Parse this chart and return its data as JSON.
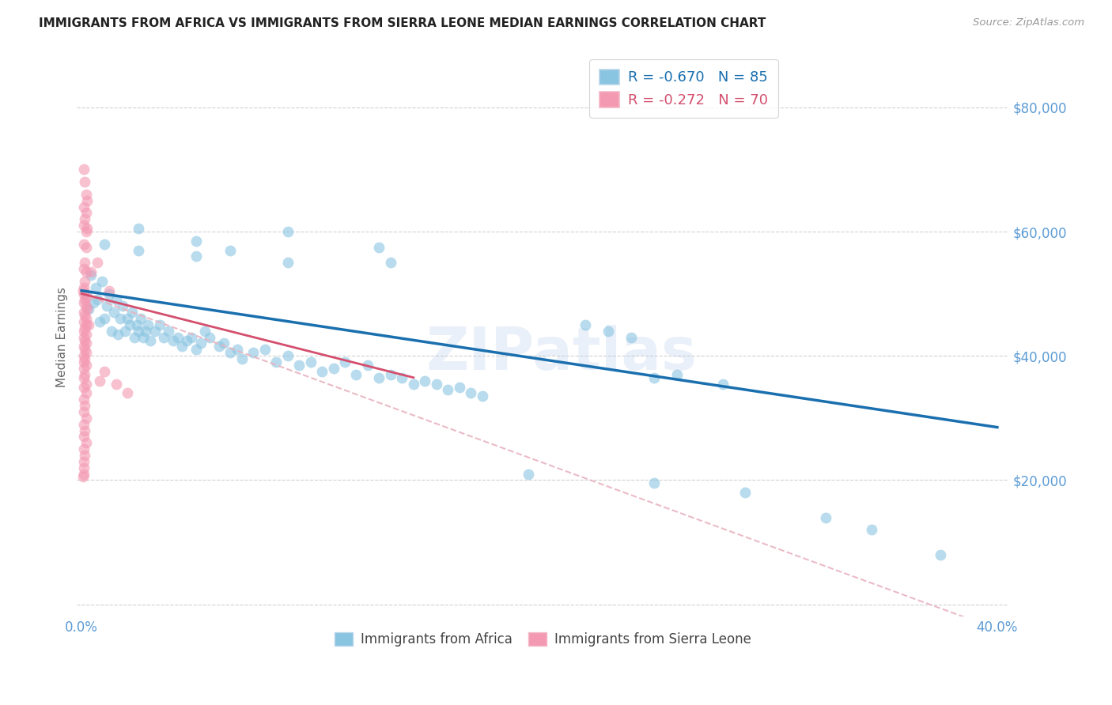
{
  "title": "IMMIGRANTS FROM AFRICA VS IMMIGRANTS FROM SIERRA LEONE MEDIAN EARNINGS CORRELATION CHART",
  "source": "Source: ZipAtlas.com",
  "ylabel": "Median Earnings",
  "xlim": [
    -0.002,
    0.405
  ],
  "ylim": [
    -2000,
    88000
  ],
  "yticks": [
    0,
    20000,
    40000,
    60000,
    80000
  ],
  "ytick_labels": [
    "",
    "$20,000",
    "$40,000",
    "$60,000",
    "$80,000"
  ],
  "xticks": [
    0.0,
    0.4
  ],
  "xtick_labels": [
    "0.0%",
    "40.0%"
  ],
  "blue_scatter_color": "#89c4e1",
  "pink_scatter_color": "#f499b2",
  "blue_line_color": "#1a6faf",
  "pink_solid_color": "#d44f6e",
  "pink_dashed_color": "#e8b4c0",
  "watermark": "ZIPatlas",
  "blue_trendline": [
    [
      0.0,
      50500
    ],
    [
      0.4,
      28500
    ]
  ],
  "pink_solid_line": [
    [
      0.0,
      50000
    ],
    [
      0.145,
      36500
    ]
  ],
  "pink_dashed_line": [
    [
      0.0,
      50000
    ],
    [
      0.4,
      -4000
    ]
  ],
  "africa_scatter": [
    [
      0.002,
      50000
    ],
    [
      0.003,
      47500
    ],
    [
      0.004,
      53000
    ],
    [
      0.005,
      48500
    ],
    [
      0.006,
      51000
    ],
    [
      0.007,
      49000
    ],
    [
      0.008,
      45500
    ],
    [
      0.009,
      52000
    ],
    [
      0.01,
      46000
    ],
    [
      0.011,
      48000
    ],
    [
      0.012,
      50000
    ],
    [
      0.013,
      44000
    ],
    [
      0.014,
      47000
    ],
    [
      0.015,
      49000
    ],
    [
      0.016,
      43500
    ],
    [
      0.017,
      46000
    ],
    [
      0.018,
      48000
    ],
    [
      0.019,
      44000
    ],
    [
      0.02,
      46000
    ],
    [
      0.021,
      45000
    ],
    [
      0.022,
      47000
    ],
    [
      0.023,
      43000
    ],
    [
      0.024,
      45000
    ],
    [
      0.025,
      44000
    ],
    [
      0.026,
      46000
    ],
    [
      0.027,
      43000
    ],
    [
      0.028,
      44000
    ],
    [
      0.029,
      45000
    ],
    [
      0.03,
      42500
    ],
    [
      0.032,
      44000
    ],
    [
      0.034,
      45000
    ],
    [
      0.036,
      43000
    ],
    [
      0.038,
      44000
    ],
    [
      0.04,
      42500
    ],
    [
      0.042,
      43000
    ],
    [
      0.044,
      41500
    ],
    [
      0.046,
      42500
    ],
    [
      0.048,
      43000
    ],
    [
      0.05,
      41000
    ],
    [
      0.052,
      42000
    ],
    [
      0.054,
      44000
    ],
    [
      0.056,
      43000
    ],
    [
      0.06,
      41500
    ],
    [
      0.062,
      42000
    ],
    [
      0.065,
      40500
    ],
    [
      0.068,
      41000
    ],
    [
      0.07,
      39500
    ],
    [
      0.075,
      40500
    ],
    [
      0.08,
      41000
    ],
    [
      0.085,
      39000
    ],
    [
      0.09,
      40000
    ],
    [
      0.095,
      38500
    ],
    [
      0.1,
      39000
    ],
    [
      0.105,
      37500
    ],
    [
      0.11,
      38000
    ],
    [
      0.115,
      39000
    ],
    [
      0.12,
      37000
    ],
    [
      0.125,
      38500
    ],
    [
      0.13,
      36500
    ],
    [
      0.135,
      37000
    ],
    [
      0.14,
      36500
    ],
    [
      0.145,
      35500
    ],
    [
      0.15,
      36000
    ],
    [
      0.155,
      35500
    ],
    [
      0.16,
      34500
    ],
    [
      0.165,
      35000
    ],
    [
      0.17,
      34000
    ],
    [
      0.175,
      33500
    ],
    [
      0.01,
      58000
    ],
    [
      0.025,
      57000
    ],
    [
      0.05,
      56000
    ],
    [
      0.09,
      55000
    ],
    [
      0.135,
      55000
    ],
    [
      0.09,
      60000
    ],
    [
      0.025,
      60500
    ],
    [
      0.05,
      58500
    ],
    [
      0.065,
      57000
    ],
    [
      0.13,
      57500
    ],
    [
      0.22,
      45000
    ],
    [
      0.23,
      44000
    ],
    [
      0.24,
      43000
    ],
    [
      0.25,
      36500
    ],
    [
      0.26,
      37000
    ],
    [
      0.28,
      35500
    ],
    [
      0.195,
      21000
    ],
    [
      0.25,
      19500
    ],
    [
      0.29,
      18000
    ],
    [
      0.325,
      14000
    ],
    [
      0.345,
      12000
    ],
    [
      0.375,
      8000
    ]
  ],
  "sierra_scatter": [
    [
      0.001,
      70000
    ],
    [
      0.0015,
      68000
    ],
    [
      0.002,
      66000
    ],
    [
      0.0025,
      65000
    ],
    [
      0.001,
      64000
    ],
    [
      0.002,
      63000
    ],
    [
      0.0015,
      62000
    ],
    [
      0.001,
      61000
    ],
    [
      0.002,
      60000
    ],
    [
      0.0025,
      60500
    ],
    [
      0.001,
      58000
    ],
    [
      0.002,
      57500
    ],
    [
      0.0015,
      55000
    ],
    [
      0.001,
      54000
    ],
    [
      0.002,
      53500
    ],
    [
      0.0015,
      52000
    ],
    [
      0.001,
      51000
    ],
    [
      0.0005,
      50500
    ],
    [
      0.001,
      50000
    ],
    [
      0.002,
      49500
    ],
    [
      0.0015,
      49000
    ],
    [
      0.001,
      48500
    ],
    [
      0.002,
      48000
    ],
    [
      0.0025,
      47500
    ],
    [
      0.001,
      47000
    ],
    [
      0.0015,
      46500
    ],
    [
      0.002,
      46000
    ],
    [
      0.001,
      45500
    ],
    [
      0.002,
      45000
    ],
    [
      0.0015,
      44500
    ],
    [
      0.001,
      44000
    ],
    [
      0.002,
      43500
    ],
    [
      0.001,
      43000
    ],
    [
      0.0015,
      42500
    ],
    [
      0.002,
      42000
    ],
    [
      0.001,
      41500
    ],
    [
      0.0015,
      41000
    ],
    [
      0.002,
      40500
    ],
    [
      0.001,
      40000
    ],
    [
      0.0015,
      39500
    ],
    [
      0.001,
      39000
    ],
    [
      0.002,
      38500
    ],
    [
      0.001,
      38000
    ],
    [
      0.0015,
      37000
    ],
    [
      0.001,
      36500
    ],
    [
      0.002,
      35500
    ],
    [
      0.001,
      35000
    ],
    [
      0.002,
      34000
    ],
    [
      0.001,
      33000
    ],
    [
      0.0015,
      32000
    ],
    [
      0.001,
      31000
    ],
    [
      0.002,
      30000
    ],
    [
      0.001,
      29000
    ],
    [
      0.0015,
      28000
    ],
    [
      0.001,
      27000
    ],
    [
      0.002,
      26000
    ],
    [
      0.001,
      25000
    ],
    [
      0.0015,
      24000
    ],
    [
      0.001,
      23000
    ],
    [
      0.001,
      22000
    ],
    [
      0.001,
      21000
    ],
    [
      0.0005,
      20500
    ],
    [
      0.01,
      37500
    ],
    [
      0.015,
      35500
    ],
    [
      0.02,
      34000
    ],
    [
      0.012,
      50500
    ],
    [
      0.007,
      55000
    ],
    [
      0.004,
      53500
    ],
    [
      0.003,
      45000
    ],
    [
      0.008,
      36000
    ]
  ]
}
